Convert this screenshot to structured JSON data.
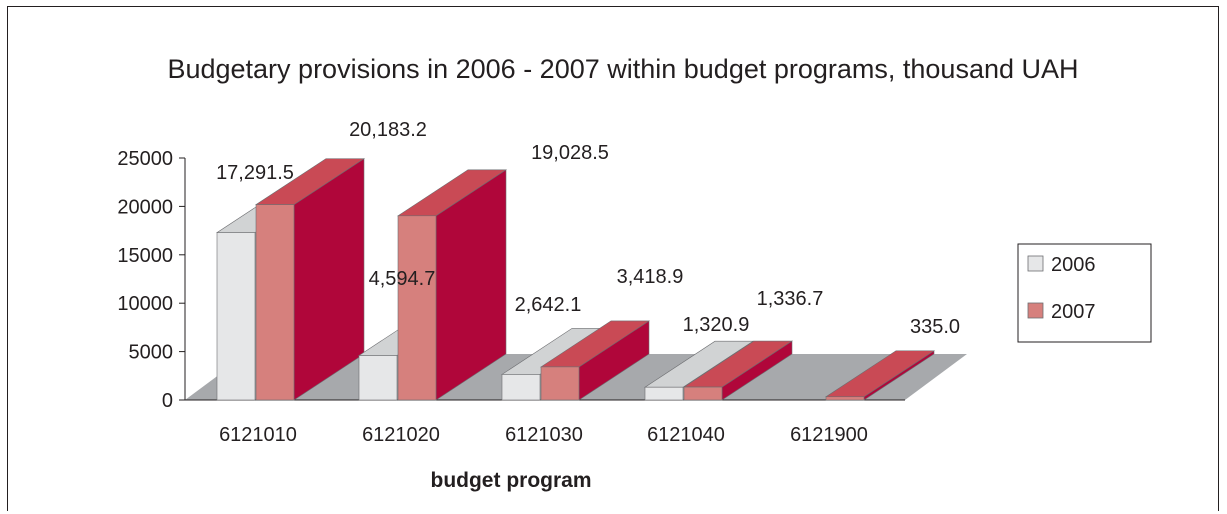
{
  "chart_data": {
    "type": "bar",
    "title": "Budgetary provisions in 2006 - 2007 within budget programs, thousand UAH",
    "xlabel": "budget program",
    "ylabel": "",
    "categories": [
      "6121010",
      "6121020",
      "6121030",
      "6121040",
      "6121900"
    ],
    "series": [
      {
        "name": "2006",
        "values": [
          17291.5,
          4594.7,
          2642.1,
          1320.9,
          0
        ],
        "labels": [
          "17,291.5",
          "4,594.7",
          "2,642.1",
          "1,320.9",
          ""
        ],
        "color": "#e6e7e8"
      },
      {
        "name": "2007",
        "values": [
          20183.2,
          19028.5,
          3418.9,
          1336.7,
          335.0
        ],
        "labels": [
          "20,183.2",
          "19,028.5",
          "3,418.9",
          "1,336.7",
          "335.0"
        ],
        "color": "#d6807d"
      }
    ],
    "yticks": [
      "0",
      "5000",
      "10000",
      "15000",
      "20000",
      "25000"
    ],
    "ylim": [
      0,
      25000
    ],
    "legend_position": "right",
    "floor_color": "#a7a9ac",
    "side_color_2007": "#b0063a",
    "top_color_2007": "#c94a55"
  }
}
